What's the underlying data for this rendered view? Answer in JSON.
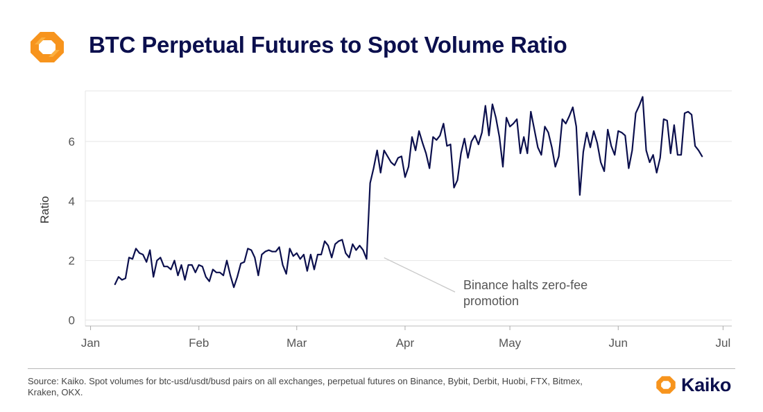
{
  "title": "BTC Perpetual Futures to Spot Volume Ratio",
  "source": "Source: Kaiko. Spot volumes for btc-usd/usdt/busd pairs on all exchanges, perpetual futures on Binance, Bybit, Derbit, Huobi, FTX, Bitmex, Kraken, OKX.",
  "brand": {
    "name": "Kaiko",
    "logo_icon": "kaiko-logo-icon"
  },
  "colors": {
    "title": "#0b0f4d",
    "line": "#0b0f4d",
    "accent_logo": "#f7941d",
    "grid": "#e6e6e6",
    "annotation_leader": "#c8c8c8"
  },
  "chart_data": {
    "type": "line",
    "title": "BTC Perpetual Futures to Spot Volume Ratio",
    "xlabel": "",
    "ylabel": "Ratio",
    "ylim": [
      -0.2,
      7.7
    ],
    "yticks": [
      0,
      2,
      4,
      6
    ],
    "x_tick_labels": [
      {
        "label": "Jan",
        "day": 0
      },
      {
        "label": "Feb",
        "day": 31
      },
      {
        "label": "Mar",
        "day": 59
      },
      {
        "label": "Apr",
        "day": 90
      },
      {
        "label": "May",
        "day": 120
      },
      {
        "label": "Jun",
        "day": 151
      },
      {
        "label": "Jul",
        "day": 181
      }
    ],
    "x_range_days": [
      -1.5,
      183.5
    ],
    "grid": "horizontal",
    "legend": "none",
    "series": [
      {
        "start_date": "2023-01-08",
        "values": [
          1.2,
          1.45,
          1.35,
          1.4,
          2.1,
          2.05,
          2.4,
          2.25,
          2.2,
          1.95,
          2.35,
          1.45,
          2.0,
          2.1,
          1.8,
          1.8,
          1.7,
          2.0,
          1.5,
          1.85,
          1.35,
          1.85,
          1.85,
          1.6,
          1.85,
          1.8,
          1.45,
          1.3,
          1.7,
          1.6,
          1.6,
          1.5,
          2.0,
          1.5,
          1.1,
          1.45,
          1.9,
          1.95,
          2.4,
          2.35,
          2.1,
          1.5,
          2.2,
          2.3,
          2.35,
          2.3,
          2.3,
          2.45,
          1.85,
          1.55,
          2.4,
          2.15,
          2.25,
          2.05,
          2.2,
          1.65,
          2.2,
          1.7,
          2.2,
          2.2,
          2.65,
          2.5,
          2.1,
          2.55,
          2.65,
          2.7,
          2.25,
          2.1,
          2.55,
          2.35,
          2.5,
          2.35,
          2.05,
          4.6,
          5.1,
          5.7,
          4.95,
          5.7,
          5.5,
          5.3,
          5.2,
          5.45,
          5.5,
          4.8,
          5.15,
          6.15,
          5.7,
          6.35,
          5.95,
          5.6,
          5.1,
          6.15,
          6.05,
          6.2,
          6.6,
          5.85,
          5.9,
          4.45,
          4.7,
          5.6,
          6.1,
          5.45,
          6.0,
          6.2,
          5.9,
          6.3,
          7.2,
          6.2,
          7.25,
          6.8,
          6.15,
          5.15,
          6.8,
          6.5,
          6.6,
          6.75,
          5.6,
          6.15,
          5.6,
          7.0,
          6.4,
          5.8,
          5.55,
          6.5,
          6.3,
          5.8,
          5.15,
          5.5,
          6.75,
          6.6,
          6.85,
          7.15,
          6.5,
          4.2,
          5.65,
          6.3,
          5.8,
          6.35,
          5.95,
          5.3,
          5.0,
          6.4,
          5.85,
          5.55,
          6.35,
          6.3,
          6.2,
          5.1,
          5.7,
          6.95,
          7.2,
          7.5,
          5.7,
          5.3,
          5.55,
          4.95,
          5.45,
          6.75,
          6.7,
          5.6,
          6.55,
          5.55,
          5.55,
          6.95,
          7.0,
          6.9,
          5.85,
          5.7,
          5.5
        ]
      }
    ],
    "annotations": [
      {
        "text": "Binance halts zero-fee promotion",
        "lines": [
          "Binance halts zero-fee",
          "promotion"
        ],
        "target": {
          "day": 84,
          "value": 2.0
        }
      }
    ]
  }
}
